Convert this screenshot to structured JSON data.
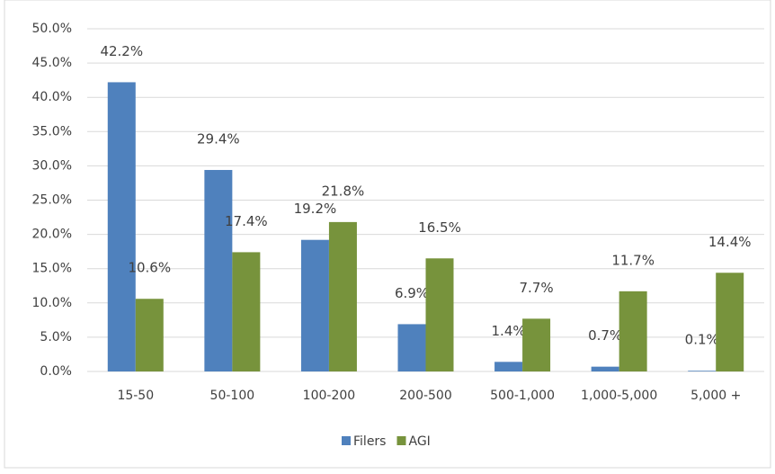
{
  "chart_data": {
    "type": "bar",
    "categories": [
      "15-50",
      "50-100",
      "100-200",
      "200-500",
      "500-1,000",
      "1,000-5,000",
      "5,000 +"
    ],
    "series": [
      {
        "name": "Filers",
        "color": "#4f81bd",
        "values": [
          42.2,
          29.4,
          19.2,
          6.9,
          1.4,
          0.7,
          0.1
        ],
        "value_labels": [
          "42.2%",
          "29.4%",
          "19.2%",
          "6.9%",
          "1.4%",
          "0.7%",
          "0.1%"
        ]
      },
      {
        "name": "AGI",
        "color": "#77933c",
        "values": [
          10.6,
          17.4,
          21.8,
          16.5,
          7.7,
          11.7,
          14.4
        ],
        "value_labels": [
          "10.6%",
          "17.4%",
          "21.8%",
          "16.5%",
          "7.7%",
          "11.7%",
          "14.4%"
        ]
      }
    ],
    "ylim": [
      0,
      50
    ],
    "yticks": [
      {
        "value": 0,
        "label": "0.0%"
      },
      {
        "value": 5,
        "label": "5.0%"
      },
      {
        "value": 10,
        "label": "10.0%"
      },
      {
        "value": 15,
        "label": "15.0%"
      },
      {
        "value": 20,
        "label": "20.0%"
      },
      {
        "value": 25,
        "label": "25.0%"
      },
      {
        "value": 30,
        "label": "30.0%"
      },
      {
        "value": 35,
        "label": "35.0%"
      },
      {
        "value": 40,
        "label": "40.0%"
      },
      {
        "value": 45,
        "label": "45.0%"
      },
      {
        "value": 50,
        "label": "50.0%"
      }
    ],
    "grid": true,
    "legend": "bottom"
  }
}
